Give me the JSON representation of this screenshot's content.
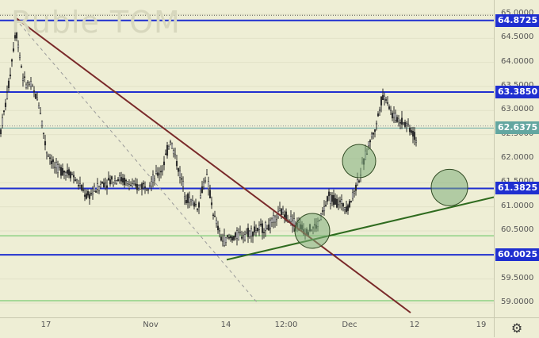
{
  "watermark": "Ruble TOM",
  "price_ticks": [
    "65.0000",
    "64.5000",
    "64.0000",
    "63.5000",
    "63.0000",
    "62.5000",
    "62.0000",
    "61.5000",
    "61.0000",
    "60.5000",
    "59.5000",
    "59.0000"
  ],
  "price_tick_values": [
    65.0,
    64.5,
    64.0,
    63.5,
    63.0,
    62.5,
    62.0,
    61.5,
    61.0,
    60.5,
    59.5,
    59.0
  ],
  "levels": [
    {
      "label": "64.8725",
      "value": 64.8725,
      "color": "#1f2fd0"
    },
    {
      "label": "63.3850",
      "value": 63.385,
      "color": "#1f2fd0"
    },
    {
      "label": "62.6375",
      "value": 62.6375,
      "color": "#63a6a0"
    },
    {
      "label": "61.3825",
      "value": 61.3825,
      "color": "#1f2fd0"
    },
    {
      "label": "60.0025",
      "value": 60.0025,
      "color": "#1f2fd0"
    }
  ],
  "time_labels": [
    "17",
    "Nov",
    "14",
    "12:00",
    "Dec",
    "12",
    "19"
  ],
  "colors": {
    "resistance": "#7a2a2a",
    "support": "#2f6b1f",
    "circle_fill": "#7fae7a",
    "candle": "#2b2b2b"
  },
  "settings_icon": "gear-icon"
}
